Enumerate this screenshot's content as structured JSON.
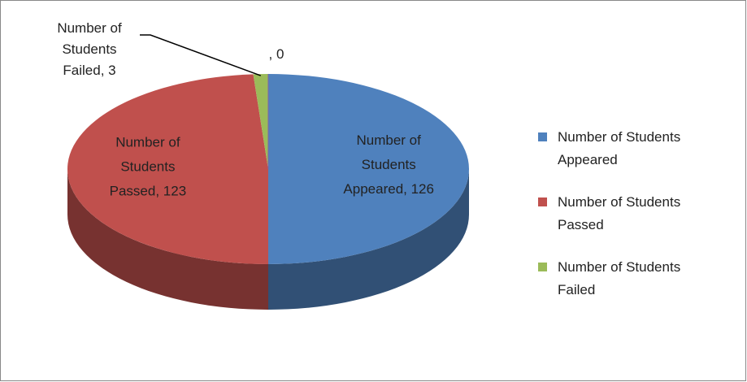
{
  "chart_data": {
    "type": "pie3d",
    "categories": [
      "Number of Students Appeared",
      "Number of Students Passed",
      "Number of Students Failed",
      null
    ],
    "values": [
      126,
      123,
      3,
      0
    ],
    "value_labels": [
      "Number of Students Appeared, 126",
      "Number of Students Passed, 123",
      "Number of Students Failed, 3",
      ", 0"
    ],
    "colors": [
      "#4f81bd",
      "#c0504d",
      "#9bbb59",
      "#8064a2"
    ],
    "legend": "right"
  }
}
